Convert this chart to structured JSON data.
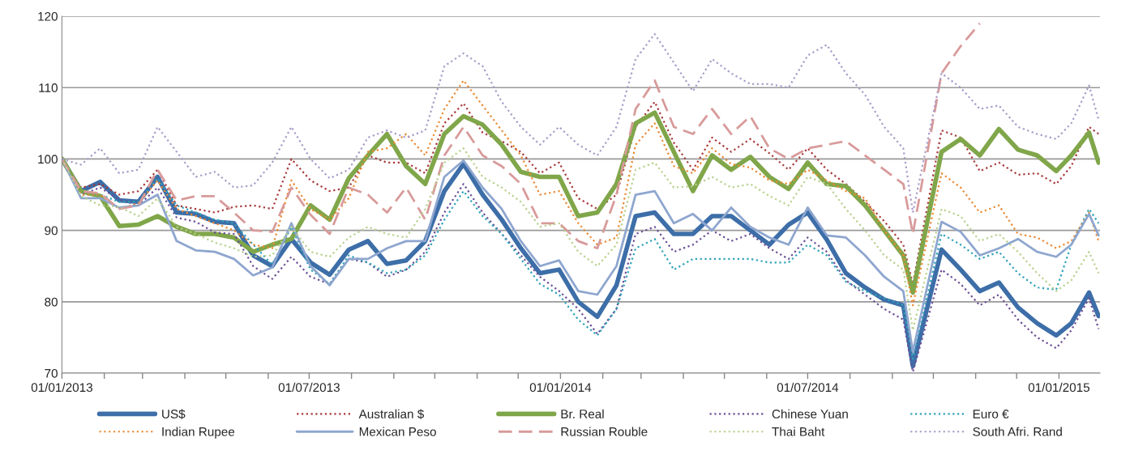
{
  "chart_data": {
    "type": "line",
    "x": [
      "2013-01-01",
      "2013-01-15",
      "2013-01-29",
      "2013-02-12",
      "2013-02-26",
      "2013-03-12",
      "2013-03-26",
      "2013-04-09",
      "2013-04-23",
      "2013-05-07",
      "2013-05-21",
      "2013-06-04",
      "2013-06-18",
      "2013-07-02",
      "2013-07-16",
      "2013-07-30",
      "2013-08-13",
      "2013-08-27",
      "2013-09-10",
      "2013-09-24",
      "2013-10-08",
      "2013-10-22",
      "2013-11-05",
      "2013-11-19",
      "2013-12-03",
      "2013-12-17",
      "2013-12-31",
      "2014-01-14",
      "2014-01-28",
      "2014-02-11",
      "2014-02-25",
      "2014-03-11",
      "2014-03-25",
      "2014-04-08",
      "2014-04-22",
      "2014-05-06",
      "2014-05-20",
      "2014-06-03",
      "2014-06-17",
      "2014-07-01",
      "2014-07-15",
      "2014-07-29",
      "2014-08-12",
      "2014-08-26",
      "2014-09-09",
      "2014-09-16",
      "2014-10-07",
      "2014-10-21",
      "2014-11-04",
      "2014-11-18",
      "2014-12-02",
      "2014-12-16",
      "2014-12-30",
      "2015-01-10",
      "2015-01-23",
      "2015-01-30"
    ],
    "series": [
      {
        "name": "US$",
        "color": "#3d6ea8",
        "line_style": "solid",
        "values": [
          100,
          95.5,
          96.8,
          94.2,
          94.0,
          97.5,
          92.5,
          92.3,
          91.2,
          91.0,
          86.5,
          85.0,
          88.8,
          85.5,
          83.8,
          87.3,
          88.5,
          85.3,
          85.8,
          88.5,
          95.5,
          99.3,
          95,
          91.5,
          87.5,
          84,
          84.5,
          80,
          77.9,
          82.3,
          92,
          92.5,
          89.5,
          89.5,
          92,
          92,
          90,
          88,
          90.8,
          92.5,
          88.7,
          84,
          82,
          80.3,
          79.5,
          71,
          87.3,
          84.5,
          81.5,
          82.7,
          79.2,
          77,
          75.3,
          77,
          81.3,
          78
        ]
      },
      {
        "name": "Australian $",
        "color": "#a83a3a",
        "line_style": "dotted",
        "values": [
          100,
          96,
          96.5,
          95,
          95.5,
          98.5,
          93.5,
          93,
          92.5,
          93.3,
          93.5,
          93,
          100,
          97,
          95.5,
          96,
          100.5,
          99.5,
          99.5,
          98,
          105,
          107.8,
          103.7,
          102.5,
          101,
          98,
          99.5,
          94.5,
          93,
          95,
          104.5,
          108,
          102.3,
          98.5,
          103,
          101,
          102.8,
          100.8,
          98.5,
          101.5,
          98.5,
          96.5,
          94,
          91.3,
          88,
          82.5,
          104,
          103,
          98.3,
          99.5,
          97.8,
          98,
          96.5,
          99,
          104.5,
          103.5
        ]
      },
      {
        "name": "Br. Real",
        "color": "#80a64a",
        "line_style": "solid",
        "values": [
          100,
          95.5,
          94.8,
          90.6,
          90.8,
          92,
          90.5,
          89.5,
          89.5,
          89,
          87,
          88,
          88.8,
          93.5,
          91.5,
          97.3,
          100.5,
          103.5,
          99,
          96.5,
          103.5,
          106,
          104.8,
          102,
          98.2,
          97.5,
          97.5,
          92,
          92.5,
          96.5,
          105,
          106.5,
          101,
          95.5,
          100.5,
          98.5,
          100.3,
          97.5,
          95.8,
          99.5,
          96.5,
          96.2,
          93.5,
          90,
          86.5,
          81.3,
          101,
          102.8,
          100.5,
          104.2,
          101.3,
          100.5,
          98.3,
          100.5,
          103.7,
          99.5
        ]
      },
      {
        "name": "Chinese Yuan",
        "color": "#6b4f96",
        "line_style": "dotted",
        "values": [
          100,
          95,
          96,
          94.3,
          93.5,
          96,
          91.8,
          91.2,
          89.7,
          89.5,
          85,
          83.2,
          86.3,
          83.5,
          82.5,
          86,
          85.5,
          83.5,
          84.5,
          87,
          92.5,
          96.5,
          92.5,
          89.5,
          86.5,
          83.5,
          81.5,
          79,
          75.5,
          79,
          89.5,
          90.5,
          87,
          88,
          90,
          88.5,
          89.5,
          87.5,
          86,
          89,
          87,
          83,
          81,
          79,
          77.5,
          70.2,
          84.5,
          82.5,
          79.5,
          81,
          77.5,
          75,
          73.5,
          76,
          80.5,
          76.2
        ]
      },
      {
        "name": "Euro €",
        "color": "#2fa2b8",
        "line_style": "dotted",
        "values": [
          100,
          95,
          95,
          94,
          94,
          97.3,
          93.5,
          92.5,
          91.5,
          91,
          88,
          85.2,
          90.5,
          84.5,
          82.5,
          86.5,
          85.5,
          84,
          84.5,
          86.5,
          91.5,
          95.5,
          92,
          89.5,
          86,
          82.5,
          81,
          77.5,
          75.3,
          79,
          87.5,
          88.8,
          84.5,
          86,
          86,
          86,
          86,
          85.5,
          85.5,
          88,
          86.5,
          82.8,
          81.5,
          80.5,
          79.5,
          72,
          89.5,
          88,
          86,
          87,
          84,
          82,
          81.7,
          88,
          93,
          91
        ]
      },
      {
        "name": "Indian Rupee",
        "color": "#ea8a33",
        "line_style": "dotted",
        "values": [
          100,
          95,
          95,
          93,
          93.8,
          97,
          93,
          92,
          91,
          90,
          88,
          87.5,
          97,
          93,
          91.5,
          94.5,
          101,
          101.5,
          103.5,
          100.5,
          107,
          111,
          107.5,
          104,
          100.5,
          95,
          95.5,
          91,
          88,
          89,
          102,
          105,
          99,
          98,
          101.5,
          99.3,
          98.8,
          97,
          96.5,
          98.5,
          97,
          95.5,
          94.5,
          90,
          86.5,
          79.5,
          98,
          96,
          92.5,
          93.5,
          89.5,
          89,
          87.5,
          88.5,
          92.5,
          88.5
        ]
      },
      {
        "name": "Mexican Peso",
        "color": "#8ea6cf",
        "line_style": "solid",
        "values": [
          100,
          94.5,
          94.5,
          93.2,
          93.5,
          95,
          88.5,
          87.2,
          87,
          86,
          83.7,
          84.8,
          91,
          85,
          82.3,
          86,
          86,
          87.5,
          88.5,
          88.5,
          97.5,
          99.8,
          96,
          93,
          88.5,
          85,
          85.8,
          81.5,
          81,
          85,
          95,
          95.5,
          91,
          92.3,
          90,
          93.2,
          90.5,
          89,
          88,
          93.2,
          89.3,
          89,
          86.5,
          83.5,
          81.5,
          73,
          91.2,
          89.8,
          86.5,
          87.5,
          88.8,
          87,
          86.3,
          88,
          92.3,
          89.3
        ]
      },
      {
        "name": "Russian Rouble",
        "color": "#d89a9a",
        "line_style": "dashed",
        "values": [
          100,
          95.5,
          95.2,
          93,
          93.5,
          98.5,
          94.2,
          94.8,
          94.8,
          92.5,
          90,
          89.8,
          96,
          92.2,
          89.5,
          96,
          95,
          92.5,
          96,
          91.5,
          100.5,
          104.5,
          100.5,
          99,
          96.5,
          91,
          91,
          88.5,
          87.5,
          95,
          107,
          111,
          104.5,
          103.5,
          107,
          103.5,
          106,
          101.5,
          100,
          101.5,
          102,
          102.5,
          100.5,
          98.5,
          96.5,
          89.5,
          112,
          115.8,
          119,
          null,
          null,
          null,
          null,
          null,
          null,
          null
        ]
      },
      {
        "name": "Thai Baht",
        "color": "#b9d18e",
        "line_style": "dotted",
        "values": [
          100,
          94.8,
          93.5,
          93.3,
          92,
          94.5,
          90.5,
          89.5,
          88.3,
          87.5,
          86.3,
          86.5,
          90.5,
          87,
          86.3,
          89,
          90.5,
          89.5,
          89,
          93,
          99.5,
          101.5,
          97.5,
          96,
          94,
          90.5,
          91,
          87,
          85,
          88,
          98.5,
          99.5,
          96,
          96.2,
          97.5,
          96,
          96.5,
          94.8,
          93.5,
          97.5,
          96.5,
          93,
          90,
          86.5,
          84.5,
          76,
          93,
          92,
          88.5,
          89.5,
          87,
          84,
          81.5,
          83,
          87,
          84
        ]
      },
      {
        "name": "South Afri. Rand",
        "color": "#a99bc9",
        "line_style": "dotted",
        "values": [
          100,
          99.2,
          101.5,
          98,
          98.5,
          104.5,
          101,
          97.5,
          98.2,
          96,
          96.3,
          99.5,
          104.5,
          100,
          97.3,
          98.5,
          103,
          104,
          103,
          104,
          113,
          114.8,
          113,
          108,
          104.5,
          102,
          104.5,
          102,
          100.5,
          104.5,
          114,
          117.5,
          113.5,
          109.5,
          114,
          112,
          110.5,
          110.5,
          110,
          114.5,
          116,
          112,
          109,
          104.5,
          101.5,
          92.5,
          112,
          110,
          107,
          107.5,
          104.5,
          103.5,
          102.8,
          105,
          110.3,
          105.5
        ]
      }
    ],
    "xlim": [
      "2013-01-01",
      "2015-01-31"
    ],
    "xticks": [
      {
        "value": "2013-01-01",
        "label": "01/01/2013"
      },
      {
        "value": "2013-02-01",
        "label": null
      },
      {
        "value": "2013-03-01",
        "label": null
      },
      {
        "value": "2013-04-01",
        "label": null
      },
      {
        "value": "2013-05-01",
        "label": null
      },
      {
        "value": "2013-06-01",
        "label": null
      },
      {
        "value": "2013-07-01",
        "label": "01/07/2013"
      },
      {
        "value": "2013-08-01",
        "label": null
      },
      {
        "value": "2013-09-01",
        "label": null
      },
      {
        "value": "2013-10-01",
        "label": null
      },
      {
        "value": "2013-11-01",
        "label": null
      },
      {
        "value": "2013-12-01",
        "label": null
      },
      {
        "value": "2014-01-01",
        "label": "01/01/2014"
      },
      {
        "value": "2014-02-01",
        "label": null
      },
      {
        "value": "2014-03-01",
        "label": null
      },
      {
        "value": "2014-04-01",
        "label": null
      },
      {
        "value": "2014-05-01",
        "label": null
      },
      {
        "value": "2014-06-01",
        "label": null
      },
      {
        "value": "2014-07-01",
        "label": "01/07/2014"
      },
      {
        "value": "2014-08-01",
        "label": null
      },
      {
        "value": "2014-09-01",
        "label": null
      },
      {
        "value": "2014-10-01",
        "label": null
      },
      {
        "value": "2014-11-01",
        "label": null
      },
      {
        "value": "2014-12-01",
        "label": null
      },
      {
        "value": "2015-01-01",
        "label": "01/01/2015"
      }
    ],
    "ylim": [
      70,
      120
    ],
    "yticks": [
      70,
      80,
      90,
      100,
      110,
      120
    ],
    "grid": "y",
    "legend": "bottom"
  }
}
